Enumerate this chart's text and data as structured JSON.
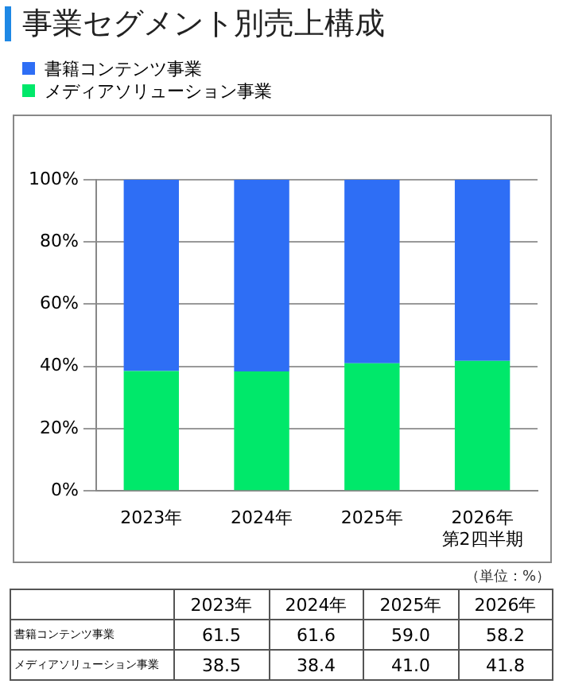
{
  "chart_data": [
    {
      "type": "bar",
      "title": "事業セグメント別売上構成",
      "stacked": true,
      "categories": [
        "2023年",
        "2024年",
        "2025年",
        "2026年第2四半期"
      ],
      "series": [
        {
          "name": "メディアソリューション事業",
          "color": "#00e86a",
          "values": [
            38.5,
            38.4,
            41.0,
            41.8
          ]
        },
        {
          "name": "書籍コンテンツ事業",
          "color": "#2e6ef5",
          "values": [
            61.5,
            61.6,
            59.0,
            58.2
          ]
        }
      ],
      "ylim": [
        0,
        100
      ],
      "yticks": [
        {
          "value": 0,
          "label": "0%"
        },
        {
          "value": 20,
          "label": "20%"
        },
        {
          "value": 40,
          "label": "40%"
        },
        {
          "value": 60,
          "label": "60%"
        },
        {
          "value": 80,
          "label": "80%"
        },
        {
          "value": 100,
          "label": "100%"
        }
      ],
      "grid": "y",
      "legend": "top left"
    },
    {
      "type": "heatmap",
      "categories": [
        "2023年",
        "2024年",
        "2025年",
        "2026年"
      ],
      "y_categories": [
        "書籍コンテンツ事業",
        "メディアソリューション事業"
      ],
      "cells": [
        [
          61.5,
          61.6,
          59.0,
          58.2
        ],
        [
          38.5,
          38.4,
          41.0,
          41.8
        ]
      ],
      "cell_labels": [
        [
          "61.5",
          "61.6",
          "59.0",
          "58.2"
        ],
        [
          "38.5",
          "38.4",
          "41.0",
          "41.8"
        ]
      ],
      "annotations": [
        "（単位：%）"
      ]
    }
  ]
}
